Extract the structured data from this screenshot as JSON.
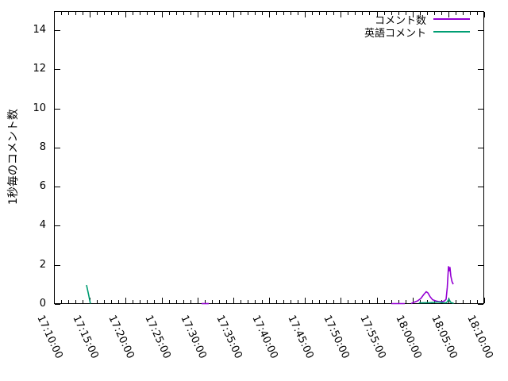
{
  "chart_data": {
    "type": "line",
    "title": "",
    "xlabel": "",
    "ylabel": "1秒毎のコメント数",
    "ylim": [
      0,
      15
    ],
    "yticks": [
      0,
      2,
      4,
      6,
      8,
      10,
      12,
      14
    ],
    "xticks": [
      "17:10:00",
      "17:15:00",
      "17:20:00",
      "17:25:00",
      "17:30:00",
      "17:35:00",
      "17:40:00",
      "17:45:00",
      "17:50:00",
      "17:55:00",
      "18:00:00",
      "18:05:00",
      "18:10:00"
    ],
    "x_range": [
      "17:10:00",
      "18:10:00"
    ],
    "x_minor_tick_seconds": 60,
    "grid": false,
    "legend_position": "top-right-inside",
    "background_color": "#ffffff",
    "axis_color": "#000000",
    "series": [
      {
        "name": "コメント数",
        "color": "#9400d3",
        "segments": [
          [
            [
              "17:30:35",
              0.02
            ],
            [
              "17:31:35",
              0.02
            ]
          ],
          [
            [
              "17:57:02",
              0.02
            ],
            [
              "17:58:55",
              0.02
            ]
          ],
          [
            [
              "17:59:49",
              0.02
            ],
            [
              "18:00:09",
              0.08
            ],
            [
              "18:00:42",
              0.16
            ],
            [
              "18:01:09",
              0.28
            ],
            [
              "18:01:35",
              0.49
            ],
            [
              "18:01:55",
              0.63
            ],
            [
              "18:02:09",
              0.57
            ],
            [
              "18:02:28",
              0.37
            ],
            [
              "18:02:48",
              0.22
            ],
            [
              "18:03:15",
              0.16
            ],
            [
              "18:03:41",
              0.12
            ],
            [
              "18:04:08",
              0.12
            ],
            [
              "18:04:28",
              0.16
            ],
            [
              "18:04:41",
              0.24
            ],
            [
              "18:04:51",
              0.85
            ],
            [
              "18:05:01",
              1.91
            ],
            [
              "18:05:08",
              1.7
            ],
            [
              "18:05:14",
              1.87
            ],
            [
              "18:05:21",
              1.42
            ],
            [
              "18:05:31",
              1.14
            ],
            [
              "18:05:41",
              1.01
            ]
          ]
        ]
      },
      {
        "name": "英語コメント",
        "color": "#009e73",
        "segments": [
          [
            [
              "17:14:32",
              0.97
            ],
            [
              "17:14:49",
              0.5
            ],
            [
              "17:15:05",
              0.02
            ]
          ],
          [
            [
              "18:00:54",
              0.06
            ],
            [
              "18:02:30",
              0.07
            ],
            [
              "18:03:30",
              0.1
            ],
            [
              "18:04:20",
              0.06
            ],
            [
              "18:04:45",
              0.06
            ],
            [
              "18:05:05",
              0.25
            ],
            [
              "18:05:20",
              0.08
            ],
            [
              "18:05:45",
              0.03
            ]
          ]
        ]
      }
    ]
  }
}
